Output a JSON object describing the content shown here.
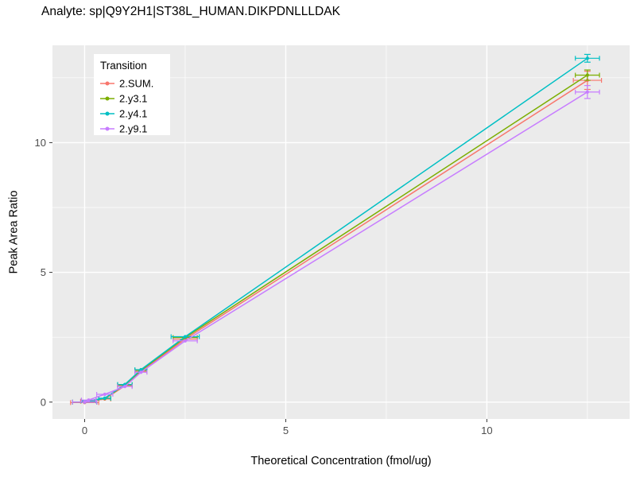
{
  "title": "Analyte: sp|Q9Y2H1|ST38L_HUMAN.DIKPDNLLLDAK",
  "chart_data": {
    "type": "line",
    "title": "Analyte: sp|Q9Y2H1|ST38L_HUMAN.DIKPDNLLLDAK",
    "xlabel": "Theoretical Concentration (fmol/ug)",
    "ylabel": "Peak Area Ratio",
    "xlim": [
      -0.8,
      13.55
    ],
    "ylim": [
      -0.65,
      13.75
    ],
    "x_ticks": [
      0,
      5,
      10
    ],
    "y_ticks": [
      0,
      5,
      10
    ],
    "x_minor": [
      2.5,
      7.5,
      12.5
    ],
    "y_minor": [
      2.5,
      7.5,
      12.5
    ],
    "grid": true,
    "panel_bg": "#EBEBEB",
    "grid_color": "#FFFFFF",
    "tick_label_color": "#4D4D4D",
    "legend_title": "Transition",
    "legend_position": "top-left-inside",
    "series": [
      {
        "name": "2.SUM.",
        "color": "#F8766D",
        "x": [
          0,
          0.1,
          0.5,
          1,
          1.4,
          2.5,
          12.5
        ],
        "y": [
          -0.02,
          0.03,
          0.12,
          0.63,
          1.18,
          2.43,
          12.4
        ],
        "x_err": [
          0.35,
          0.2,
          0.15,
          0.18,
          0.15,
          0.3,
          0.35
        ],
        "y_err": [
          0,
          0,
          0,
          0,
          0,
          0,
          0.35
        ]
      },
      {
        "name": "2.y3.1",
        "color": "#7CAE00",
        "x": [
          0,
          0.1,
          0.5,
          1,
          1.4,
          2.5,
          12.5
        ],
        "y": [
          0,
          0.05,
          0.14,
          0.66,
          1.22,
          2.49,
          12.6
        ],
        "x_err": [
          0.3,
          0.18,
          0.15,
          0.18,
          0.15,
          0.3,
          0.3
        ],
        "y_err": [
          0,
          0,
          0,
          0,
          0,
          0,
          0.2
        ]
      },
      {
        "name": "2.y4.1",
        "color": "#00BFC4",
        "x": [
          0,
          0.1,
          0.5,
          1,
          1.4,
          2.5,
          12.5
        ],
        "y": [
          0,
          0.05,
          0.15,
          0.68,
          1.25,
          2.52,
          13.25
        ],
        "x_err": [
          0.3,
          0.18,
          0.15,
          0.18,
          0.15,
          0.35,
          0.3
        ],
        "y_err": [
          0,
          0,
          0,
          0,
          0,
          0,
          0.15
        ]
      },
      {
        "name": "2.y9.1",
        "color": "#C77CFF",
        "x": [
          0,
          0.1,
          0.5,
          1,
          1.4,
          2.5,
          12.5
        ],
        "y": [
          0,
          0.08,
          0.3,
          0.6,
          1.15,
          2.36,
          11.95
        ],
        "x_err": [
          0.3,
          0.18,
          0.2,
          0.18,
          0.15,
          0.3,
          0.3
        ],
        "y_err": [
          0,
          0,
          0,
          0,
          0,
          0,
          0.25
        ]
      }
    ]
  }
}
